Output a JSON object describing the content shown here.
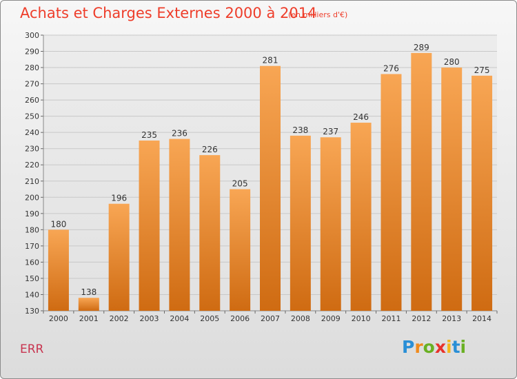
{
  "title": "Achats et Charges Externes 2000 à 2014",
  "subtitle": "(en milliers d'€)",
  "commune": "ERR",
  "brand": {
    "letters": [
      "P",
      "r",
      "o",
      "x",
      "i",
      "t",
      "i"
    ],
    "colors": [
      "#2a8fd6",
      "#f08a1c",
      "#6ab023",
      "#e8322b",
      "#f3b61b",
      "#2a8fd6",
      "#6ab023"
    ]
  },
  "colors": {
    "bar_top": "#f8a654",
    "bar_bottom": "#cf6b12",
    "grid": "#c8c8c8",
    "axis_text": "#333333"
  },
  "chart_data": {
    "type": "bar",
    "title": "Achats et Charges Externes 2000 à 2014",
    "subtitle": "(en milliers d'€)",
    "categories": [
      "2000",
      "2001",
      "2002",
      "2003",
      "2004",
      "2005",
      "2006",
      "2007",
      "2008",
      "2009",
      "2010",
      "2011",
      "2012",
      "2013",
      "2014"
    ],
    "values": [
      180,
      138,
      196,
      235,
      236,
      226,
      205,
      281,
      238,
      237,
      246,
      276,
      289,
      280,
      275
    ],
    "ylim": [
      130,
      300
    ],
    "ytick_step": 10,
    "yticks": [
      "130",
      "140",
      "150",
      "160",
      "170",
      "180",
      "190",
      "200",
      "210",
      "220",
      "230",
      "240",
      "250",
      "260",
      "270",
      "280",
      "290",
      "300"
    ],
    "grid": true,
    "legend": "none"
  }
}
